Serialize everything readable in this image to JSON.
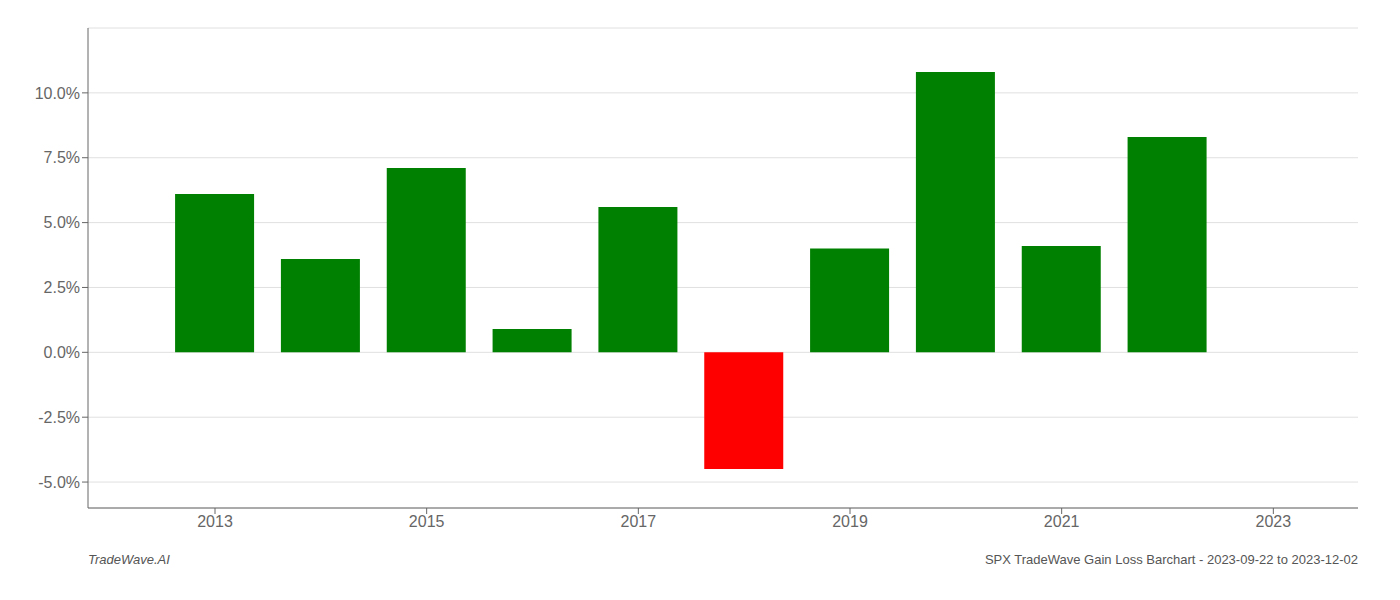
{
  "chart_data": {
    "type": "bar",
    "x": [
      2013,
      2014,
      2015,
      2016,
      2017,
      2018,
      2019,
      2020,
      2021,
      2022
    ],
    "values": [
      0.061,
      0.036,
      0.071,
      0.009,
      0.056,
      -0.045,
      0.04,
      0.108,
      0.041,
      0.083
    ],
    "colors": [
      "#008000",
      "#008000",
      "#008000",
      "#008000",
      "#008000",
      "#ff0000",
      "#008000",
      "#008000",
      "#008000",
      "#008000"
    ],
    "xlim": [
      2011.8,
      2023.8
    ],
    "xticks": [
      2013,
      2015,
      2017,
      2019,
      2021,
      2023
    ],
    "ylim": [
      -0.06,
      0.125
    ],
    "yticks": [
      {
        "value": -0.05,
        "label": "-5.0%"
      },
      {
        "value": -0.025,
        "label": "-2.5%"
      },
      {
        "value": 0.0,
        "label": "0.0%"
      },
      {
        "value": 0.025,
        "label": "2.5%"
      },
      {
        "value": 0.05,
        "label": "5.0%"
      },
      {
        "value": 0.075,
        "label": "7.5%"
      },
      {
        "value": 0.1,
        "label": "10.0%"
      }
    ],
    "grid": true,
    "annotations": [
      "TradeWave.AI",
      "SPX TradeWave Gain Loss Barchart - 2023-09-22 to 2023-12-02"
    ]
  }
}
